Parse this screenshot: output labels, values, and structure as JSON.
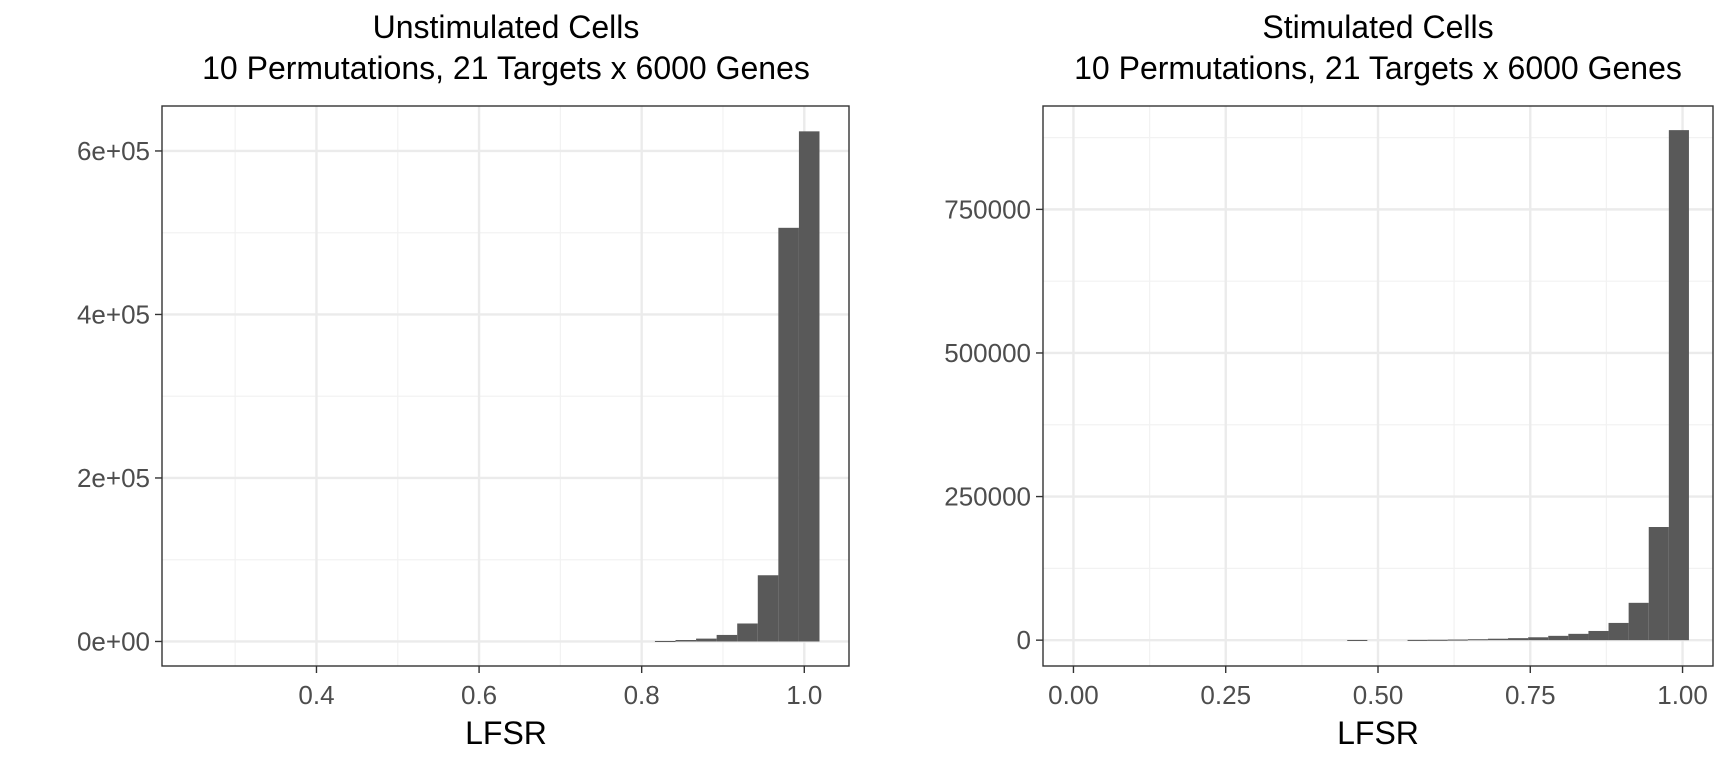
{
  "chart_data": [
    {
      "type": "bar",
      "title": "Unstimulated Cells\n10 Permutations, 21 Targets x 6000 Genes",
      "title_lines": [
        "Unstimulated Cells",
        "10 Permutations, 21 Targets x 6000 Genes"
      ],
      "xlabel": "LFSR",
      "ylabel": "",
      "xlim": [
        0.21,
        1.055
      ],
      "ylim": [
        -30000,
        655000
      ],
      "x_ticks": [
        0.4,
        0.6,
        0.8,
        1.0
      ],
      "x_tick_labels": [
        "0.4",
        "0.6",
        "0.8",
        "1.0"
      ],
      "y_ticks": [
        0,
        200000,
        400000,
        600000
      ],
      "y_tick_labels": [
        "0e+00",
        "2e+05",
        "4e+05",
        "6e+05"
      ],
      "grid": true,
      "bar_color": "#595959",
      "bins": [
        {
          "x0": 0.8163,
          "x1": 0.8416,
          "value": 600
        },
        {
          "x0": 0.8416,
          "x1": 0.8669,
          "value": 1800
        },
        {
          "x0": 0.8669,
          "x1": 0.8922,
          "value": 3500
        },
        {
          "x0": 0.8922,
          "x1": 0.9175,
          "value": 8000
        },
        {
          "x0": 0.9175,
          "x1": 0.9428,
          "value": 22000
        },
        {
          "x0": 0.9428,
          "x1": 0.9681,
          "value": 81000
        },
        {
          "x0": 0.9681,
          "x1": 0.9934,
          "value": 506000
        },
        {
          "x0": 0.9934,
          "x1": 1.0187,
          "value": 624000
        }
      ]
    },
    {
      "type": "bar",
      "title": "Stimulated Cells\n10 Permutations, 21 Targets x 6000 Genes",
      "title_lines": [
        "Stimulated Cells",
        "10 Permutations, 21 Targets x 6000 Genes"
      ],
      "xlabel": "LFSR",
      "ylabel": "",
      "xlim": [
        -0.05,
        1.05
      ],
      "ylim": [
        -45000,
        930000
      ],
      "x_ticks": [
        0.0,
        0.25,
        0.5,
        0.75,
        1.0
      ],
      "x_tick_labels": [
        "0.00",
        "0.25",
        "0.50",
        "0.75",
        "1.00"
      ],
      "y_ticks": [
        0,
        250000,
        500000,
        750000
      ],
      "y_tick_labels": [
        "0",
        "250000",
        "500000",
        "750000"
      ],
      "grid": true,
      "bar_color": "#595959",
      "bins": [
        {
          "x0": 0.4495,
          "x1": 0.4825,
          "value": 300
        },
        {
          "x0": 0.5485,
          "x1": 0.5815,
          "value": 400
        },
        {
          "x0": 0.5815,
          "x1": 0.6145,
          "value": 600
        },
        {
          "x0": 0.6145,
          "x1": 0.6475,
          "value": 1000
        },
        {
          "x0": 0.6475,
          "x1": 0.6805,
          "value": 1600
        },
        {
          "x0": 0.6805,
          "x1": 0.7135,
          "value": 2500
        },
        {
          "x0": 0.7135,
          "x1": 0.7465,
          "value": 3500
        },
        {
          "x0": 0.7465,
          "x1": 0.7795,
          "value": 5000
        },
        {
          "x0": 0.7795,
          "x1": 0.8125,
          "value": 7500
        },
        {
          "x0": 0.8125,
          "x1": 0.8455,
          "value": 11000
        },
        {
          "x0": 0.8455,
          "x1": 0.8785,
          "value": 16000
        },
        {
          "x0": 0.8785,
          "x1": 0.9115,
          "value": 30000
        },
        {
          "x0": 0.9115,
          "x1": 0.9445,
          "value": 65000
        },
        {
          "x0": 0.9445,
          "x1": 0.9775,
          "value": 197000
        },
        {
          "x0": 0.9775,
          "x1": 1.0105,
          "value": 888000
        }
      ]
    }
  ]
}
